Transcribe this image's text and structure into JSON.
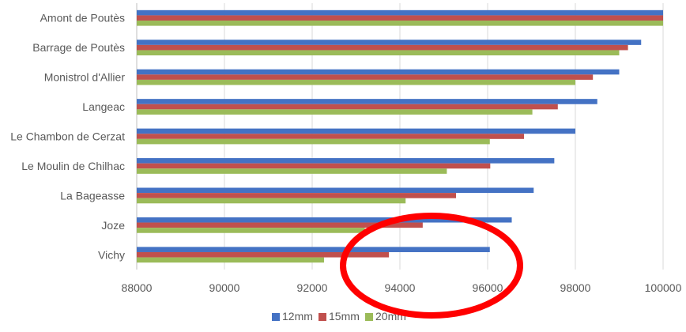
{
  "chart_data": {
    "type": "bar",
    "orientation": "horizontal",
    "categories": [
      "Amont de Poutès",
      "Barrage de Poutès",
      "Monistrol d'Allier",
      "Langeac",
      "Le Chambon de Cerzat",
      "Le Moulin de Chilhac",
      "La Bageasse",
      "Joze",
      "Vichy"
    ],
    "series": [
      {
        "name": "12mm",
        "color": "#4472c4",
        "values": [
          100000,
          99500,
          99000,
          98500,
          98000,
          97520,
          97050,
          96550,
          96050
        ]
      },
      {
        "name": "15mm",
        "color": "#c0504d",
        "values": [
          100000,
          99200,
          98400,
          97600,
          96830,
          96060,
          95280,
          94520,
          93750
        ]
      },
      {
        "name": "20mm",
        "color": "#9bbb59",
        "values": [
          100000,
          99000,
          98000,
          97020,
          96050,
          95070,
          94130,
          93200,
          92270
        ]
      }
    ],
    "xlim": [
      88000,
      100000
    ],
    "xticks": [
      "88000",
      "90000",
      "92000",
      "94000",
      "96000",
      "98000",
      "100000"
    ],
    "grid": "vertical",
    "legend_position": "bottom",
    "annotation": {
      "shape": "ellipse",
      "color": "#ff0000"
    }
  }
}
